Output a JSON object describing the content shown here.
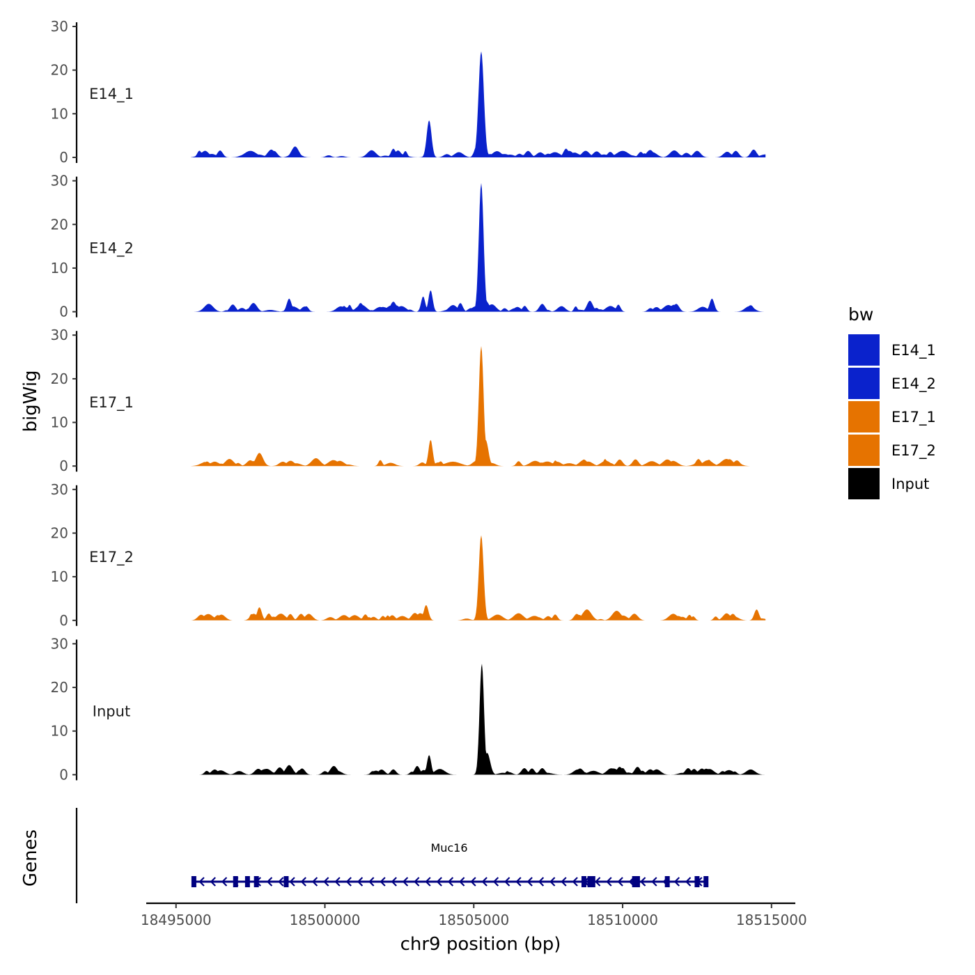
{
  "chart_data": {
    "type": "area",
    "ylabel": "bigWig",
    "xlabel": "chr9 position (bp)",
    "genes_label": "Genes",
    "xlim": [
      18494000,
      18515800
    ],
    "data_xrange": [
      18495500,
      18514800
    ],
    "ylim": [
      0,
      30
    ],
    "yticks": [
      0,
      10,
      20,
      30
    ],
    "xticks": [
      18495000,
      18500000,
      18505000,
      18510000,
      18515000
    ],
    "xtick_labels": [
      "18495000",
      "18500000",
      "18505000",
      "18510000",
      "18515000"
    ],
    "legend": {
      "title": "bw",
      "position": "right",
      "entries": [
        {
          "label": "E14_1",
          "color": "#0a22cc"
        },
        {
          "label": "E14_2",
          "color": "#0a22cc"
        },
        {
          "label": "E17_1",
          "color": "#e67300"
        },
        {
          "label": "E17_2",
          "color": "#e67300"
        },
        {
          "label": "Input",
          "color": "#000000"
        }
      ]
    },
    "series": [
      {
        "name": "E14_1",
        "color": "#0a22cc",
        "peaks": [
          [
            18503500,
            8.5,
            80
          ],
          [
            18505250,
            24.3,
            90
          ],
          [
            18505120,
            3.0,
            90
          ],
          [
            18504500,
            1.2,
            150
          ],
          [
            18499000,
            2.5,
            120
          ],
          [
            18497500,
            1.5,
            200
          ],
          [
            18498200,
            1.8,
            120
          ],
          [
            18502300,
            2.0,
            80
          ],
          [
            18508100,
            2.0,
            90
          ],
          [
            18514400,
            1.8,
            100
          ],
          [
            18496200,
            0.8,
            150
          ],
          [
            18510000,
            1.5,
            200
          ],
          [
            18511000,
            1.2,
            150
          ],
          [
            18512500,
            1.5,
            120
          ],
          [
            18513800,
            1.5,
            100
          ]
        ]
      },
      {
        "name": "E14_2",
        "color": "#0a22cc",
        "peaks": [
          [
            18505250,
            29.5,
            80
          ],
          [
            18505400,
            2.5,
            120
          ],
          [
            18503550,
            4.9,
            70
          ],
          [
            18503300,
            3.5,
            70
          ],
          [
            18498800,
            3.0,
            80
          ],
          [
            18513000,
            3.0,
            80
          ],
          [
            18504550,
            2.0,
            80
          ],
          [
            18496100,
            1.8,
            150
          ],
          [
            18497600,
            2.0,
            120
          ],
          [
            18501200,
            2.0,
            90
          ],
          [
            18502300,
            2.3,
            100
          ],
          [
            18507300,
            1.8,
            100
          ],
          [
            18508900,
            2.5,
            100
          ],
          [
            18511800,
            1.8,
            100
          ],
          [
            18514300,
            1.5,
            100
          ]
        ]
      },
      {
        "name": "E17_1",
        "color": "#e67300",
        "peaks": [
          [
            18505250,
            27.5,
            80
          ],
          [
            18505400,
            6.0,
            90
          ],
          [
            18503550,
            6.0,
            70
          ],
          [
            18497800,
            3.0,
            120
          ],
          [
            18499700,
            1.8,
            150
          ],
          [
            18504300,
            1.0,
            250
          ],
          [
            18496300,
            1.0,
            150
          ],
          [
            18500500,
            1.2,
            150
          ],
          [
            18508700,
            1.5,
            100
          ],
          [
            18509900,
            1.5,
            100
          ],
          [
            18511500,
            1.5,
            150
          ],
          [
            18513800,
            1.0,
            150
          ],
          [
            18507300,
            0.8,
            200
          ]
        ]
      },
      {
        "name": "E17_2",
        "color": "#e67300",
        "peaks": [
          [
            18505250,
            19.5,
            80
          ],
          [
            18503400,
            3.5,
            80
          ],
          [
            18497800,
            3.0,
            80
          ],
          [
            18508800,
            2.5,
            150
          ],
          [
            18509800,
            2.2,
            150
          ],
          [
            18514500,
            2.5,
            80
          ],
          [
            18496400,
            1.2,
            100
          ],
          [
            18499200,
            1.5,
            100
          ],
          [
            18501000,
            1.2,
            150
          ],
          [
            18502600,
            1.0,
            150
          ],
          [
            18506500,
            1.5,
            100
          ],
          [
            18511700,
            1.5,
            150
          ],
          [
            18513700,
            1.5,
            100
          ]
        ]
      },
      {
        "name": "Input",
        "color": "#000000",
        "peaks": [
          [
            18505270,
            25.5,
            75
          ],
          [
            18505450,
            5.0,
            100
          ],
          [
            18503500,
            4.5,
            70
          ],
          [
            18503100,
            2.0,
            90
          ],
          [
            18498800,
            2.2,
            120
          ],
          [
            18500300,
            2.0,
            120
          ],
          [
            18509900,
            1.8,
            100
          ],
          [
            18510500,
            1.8,
            100
          ],
          [
            18506700,
            1.5,
            100
          ],
          [
            18507300,
            1.5,
            100
          ],
          [
            18512200,
            1.5,
            100
          ],
          [
            18514300,
            1.2,
            150
          ],
          [
            18496500,
            1.0,
            150
          ],
          [
            18508500,
            1.2,
            150
          ]
        ]
      }
    ],
    "gene": {
      "name": "Muc16",
      "strand": "-",
      "start": 18495550,
      "end": 18512800,
      "color": "#000080",
      "exons": [
        18495600,
        18497000,
        18497400,
        18497700,
        18498700,
        18508700,
        18508900,
        18509000,
        18510400,
        18510500,
        18511500,
        18512500,
        18512800
      ]
    }
  }
}
